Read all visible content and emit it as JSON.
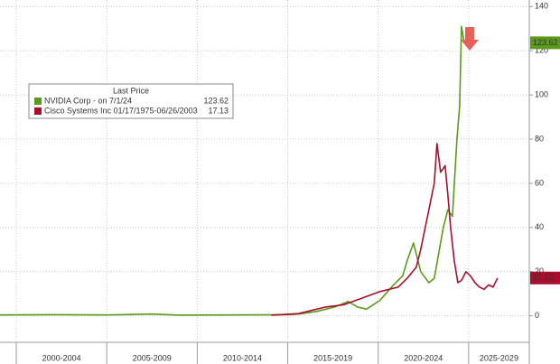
{
  "chart_data": {
    "type": "line",
    "legend_title": "Last Price",
    "xlim": [
      1999.1,
      2028.35
    ],
    "xticks": [
      {
        "value": 2002.5,
        "label": "2000-2004"
      },
      {
        "value": 2007.5,
        "label": "2005-2009"
      },
      {
        "value": 2012.5,
        "label": "2010-2014"
      },
      {
        "value": 2017.5,
        "label": "2015-2019"
      },
      {
        "value": 2022.5,
        "label": "2020-2024"
      },
      {
        "value": 2027.5,
        "label": "2025-2029"
      }
    ],
    "ylim": [
      -12,
      143
    ],
    "yticks": [
      0,
      20,
      40,
      60,
      80,
      100,
      120,
      140
    ],
    "grid": true,
    "series": [
      {
        "name": "NVIDIA Corp -  on 7/1/24",
        "color": "#5b9a1a",
        "last": 123.62,
        "x": [
          1999.1,
          2002,
          2005,
          2007.5,
          2009,
          2012,
          2015,
          2015.6,
          2016.6,
          2017.6,
          2018.35,
          2018.85,
          2019.35,
          2020.1,
          2020.85,
          2021.35,
          2021.6,
          2021.95,
          2022.35,
          2022.8,
          2023.1,
          2023.6,
          2023.85,
          2024.1,
          2024.35,
          2024.5,
          2024.6,
          2024.75
        ],
        "values": [
          0.4,
          0.5,
          0.4,
          0.8,
          0.3,
          0.4,
          0.5,
          0.8,
          2,
          4,
          6.5,
          4,
          3,
          7,
          14,
          18,
          25,
          33,
          20,
          15,
          17,
          40,
          48,
          45,
          80,
          95,
          131,
          123.62
        ]
      },
      {
        "name": "Cisco Systems Inc 01/17/1975-06/26/2003",
        "color": "#a80f2c",
        "last": 17.13,
        "x": [
          2014.1,
          2015.6,
          2017.1,
          2018.1,
          2019.1,
          2020.1,
          2021.1,
          2021.6,
          2022.1,
          2022.35,
          2022.6,
          2022.85,
          2023.1,
          2023.25,
          2023.45,
          2023.7,
          2023.85,
          2024.0,
          2024.2,
          2024.4,
          2024.6,
          2024.85,
          2025.1,
          2025.35,
          2025.6,
          2025.85,
          2026.1,
          2026.35,
          2026.6
        ],
        "values": [
          0.3,
          1,
          4,
          5,
          8,
          11,
          13,
          17,
          22,
          30,
          40,
          50,
          60,
          78,
          65,
          68,
          55,
          40,
          25,
          15,
          16,
          20,
          18,
          15,
          13,
          12,
          14,
          13,
          17.13
        ]
      }
    ]
  }
}
